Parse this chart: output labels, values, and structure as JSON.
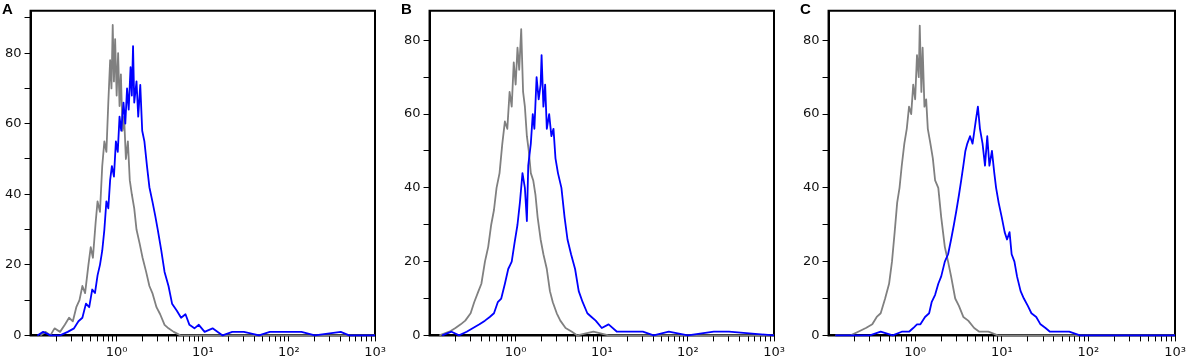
{
  "chart_data": [
    {
      "type": "line",
      "title": "A",
      "log": "x",
      "grid": false,
      "marker": "none",
      "xlim": [
        0.1,
        1000
      ],
      "ylim": [
        0,
        92
      ],
      "xticks": [
        {
          "value": 0.2,
          "label": null
        },
        {
          "value": 0.3,
          "label": null
        },
        {
          "value": 0.4,
          "label": null
        },
        {
          "value": 0.5,
          "label": null
        },
        {
          "value": 0.6,
          "label": null
        },
        {
          "value": 0.7,
          "label": null
        },
        {
          "value": 0.8,
          "label": null
        },
        {
          "value": 0.9,
          "label": null
        },
        {
          "value": 1,
          "label": "10⁰"
        },
        {
          "value": 2,
          "label": null
        },
        {
          "value": 3,
          "label": null
        },
        {
          "value": 4,
          "label": null
        },
        {
          "value": 5,
          "label": null
        },
        {
          "value": 6,
          "label": null
        },
        {
          "value": 7,
          "label": null
        },
        {
          "value": 8,
          "label": null
        },
        {
          "value": 9,
          "label": null
        },
        {
          "value": 10,
          "label": "10¹"
        },
        {
          "value": 20,
          "label": null
        },
        {
          "value": 30,
          "label": null
        },
        {
          "value": 40,
          "label": null
        },
        {
          "value": 50,
          "label": null
        },
        {
          "value": 60,
          "label": null
        },
        {
          "value": 70,
          "label": null
        },
        {
          "value": 80,
          "label": null
        },
        {
          "value": 90,
          "label": null
        },
        {
          "value": 100,
          "label": "10²"
        },
        {
          "value": 200,
          "label": null
        },
        {
          "value": 300,
          "label": null
        },
        {
          "value": 400,
          "label": null
        },
        {
          "value": 500,
          "label": null
        },
        {
          "value": 600,
          "label": null
        },
        {
          "value": 700,
          "label": null
        },
        {
          "value": 800,
          "label": null
        },
        {
          "value": 900,
          "label": null
        },
        {
          "value": 1000,
          "label": "10³"
        }
      ],
      "yticks": [
        0,
        {
          "value": 10,
          "label": null
        },
        20,
        {
          "value": 30,
          "label": null
        },
        40,
        {
          "value": 50,
          "label": null
        },
        60,
        {
          "value": 70,
          "label": null
        },
        80,
        {
          "value": 90,
          "label": null
        }
      ],
      "series": [
        {
          "color": "#808080",
          "x": [
            0.13,
            0.15,
            0.17,
            0.19,
            0.22,
            0.25,
            0.28,
            0.31,
            0.34,
            0.37,
            0.4,
            0.43,
            0.47,
            0.5,
            0.53,
            0.57,
            0.6,
            0.64,
            0.68,
            0.72,
            0.76,
            0.8,
            0.84,
            0.87,
            0.9,
            0.93,
            0.96,
            1.0,
            1.04,
            1.08,
            1.12,
            1.17,
            1.22,
            1.28,
            1.35,
            1.42,
            1.5,
            1.6,
            1.7,
            1.85,
            2.0,
            2.2,
            2.4,
            2.6,
            2.9,
            3.2,
            3.6,
            4.0,
            4.6,
            5.5,
            8,
            20,
            1000
          ],
          "values": [
            0,
            1,
            0,
            2,
            1,
            3,
            5,
            4,
            8,
            10,
            14,
            12,
            20,
            25,
            22,
            32,
            38,
            35,
            48,
            55,
            52,
            66,
            78,
            70,
            88,
            72,
            84,
            68,
            80,
            65,
            74,
            58,
            62,
            50,
            55,
            44,
            40,
            36,
            30,
            26,
            22,
            18,
            14,
            12,
            8,
            6,
            3,
            2,
            1,
            0,
            0,
            0,
            0
          ]
        },
        {
          "color": "#0000ff",
          "x": [
            0.12,
            0.14,
            0.17,
            0.22,
            0.27,
            0.32,
            0.36,
            0.4,
            0.44,
            0.48,
            0.52,
            0.56,
            0.6,
            0.64,
            0.68,
            0.72,
            0.76,
            0.8,
            0.84,
            0.88,
            0.93,
            0.98,
            1.03,
            1.08,
            1.13,
            1.2,
            1.26,
            1.32,
            1.38,
            1.45,
            1.5,
            1.55,
            1.6,
            1.7,
            1.78,
            1.88,
            1.98,
            2.1,
            2.25,
            2.4,
            2.6,
            2.8,
            3.0,
            3.3,
            3.6,
            4.0,
            4.4,
            5.0,
            5.6,
            6.3,
            7.0,
            8.0,
            9,
            10.5,
            13,
            17,
            22,
            30,
            45,
            60,
            105,
            140,
            200,
            400,
            500,
            1000
          ],
          "values": [
            0,
            1,
            0,
            0,
            1,
            2,
            4,
            5,
            9,
            8,
            13,
            12,
            17,
            20,
            24,
            30,
            38,
            36,
            44,
            48,
            45,
            55,
            52,
            62,
            58,
            66,
            60,
            70,
            64,
            76,
            68,
            82,
            66,
            72,
            62,
            71,
            58,
            55,
            48,
            42,
            38,
            34,
            30,
            24,
            18,
            14,
            9,
            7,
            5,
            6,
            3,
            2,
            3,
            1,
            2,
            0,
            1,
            1,
            0,
            1,
            1,
            1,
            0,
            1,
            0,
            0
          ]
        }
      ]
    },
    {
      "type": "line",
      "title": "B",
      "log": "x",
      "grid": false,
      "marker": "none",
      "xlim": [
        0.1,
        1000
      ],
      "ylim": [
        0,
        88
      ],
      "xticks": [
        {
          "value": 0.2,
          "label": null
        },
        {
          "value": 0.3,
          "label": null
        },
        {
          "value": 0.4,
          "label": null
        },
        {
          "value": 0.5,
          "label": null
        },
        {
          "value": 0.6,
          "label": null
        },
        {
          "value": 0.7,
          "label": null
        },
        {
          "value": 0.8,
          "label": null
        },
        {
          "value": 0.9,
          "label": null
        },
        {
          "value": 1,
          "label": "10⁰"
        },
        {
          "value": 2,
          "label": null
        },
        {
          "value": 3,
          "label": null
        },
        {
          "value": 4,
          "label": null
        },
        {
          "value": 5,
          "label": null
        },
        {
          "value": 6,
          "label": null
        },
        {
          "value": 7,
          "label": null
        },
        {
          "value": 8,
          "label": null
        },
        {
          "value": 9,
          "label": null
        },
        {
          "value": 10,
          "label": "10¹"
        },
        {
          "value": 20,
          "label": null
        },
        {
          "value": 30,
          "label": null
        },
        {
          "value": 40,
          "label": null
        },
        {
          "value": 50,
          "label": null
        },
        {
          "value": 60,
          "label": null
        },
        {
          "value": 70,
          "label": null
        },
        {
          "value": 80,
          "label": null
        },
        {
          "value": 90,
          "label": null
        },
        {
          "value": 100,
          "label": "10²"
        },
        {
          "value": 200,
          "label": null
        },
        {
          "value": 300,
          "label": null
        },
        {
          "value": 400,
          "label": null
        },
        {
          "value": 500,
          "label": null
        },
        {
          "value": 600,
          "label": null
        },
        {
          "value": 700,
          "label": null
        },
        {
          "value": 800,
          "label": null
        },
        {
          "value": 900,
          "label": null
        },
        {
          "value": 1000,
          "label": "10³"
        }
      ],
      "yticks": [
        0,
        {
          "value": 10,
          "label": null
        },
        20,
        {
          "value": 30,
          "label": null
        },
        40,
        {
          "value": 50,
          "label": null
        },
        60,
        {
          "value": 70,
          "label": null
        },
        80
      ],
      "series": [
        {
          "color": "#808080",
          "x": [
            0.13,
            0.17,
            0.2,
            0.23,
            0.26,
            0.3,
            0.33,
            0.37,
            0.4,
            0.44,
            0.48,
            0.52,
            0.56,
            0.6,
            0.65,
            0.7,
            0.75,
            0.8,
            0.85,
            0.9,
            0.95,
            1.0,
            1.05,
            1.1,
            1.16,
            1.22,
            1.28,
            1.35,
            1.42,
            1.5,
            1.6,
            1.7,
            1.8,
            1.95,
            2.1,
            2.3,
            2.5,
            2.7,
            3.0,
            3.3,
            3.8,
            4.5,
            5.2,
            8,
            12,
            1000
          ],
          "values": [
            0,
            1,
            2,
            3,
            4,
            6,
            9,
            12,
            14,
            20,
            24,
            30,
            34,
            40,
            44,
            52,
            58,
            56,
            66,
            62,
            74,
            68,
            78,
            72,
            83,
            66,
            62,
            54,
            50,
            44,
            42,
            38,
            32,
            26,
            22,
            18,
            12,
            9,
            6,
            4,
            2,
            1,
            0,
            1,
            0,
            0
          ]
        },
        {
          "color": "#0000ff",
          "x": [
            0.14,
            0.18,
            0.22,
            0.27,
            0.32,
            0.38,
            0.44,
            0.5,
            0.56,
            0.62,
            0.68,
            0.75,
            0.82,
            0.9,
            0.97,
            1.05,
            1.12,
            1.2,
            1.28,
            1.35,
            1.4,
            1.5,
            1.58,
            1.65,
            1.75,
            1.85,
            1.95,
            2.0,
            2.1,
            2.2,
            2.3,
            2.45,
            2.6,
            2.75,
            2.9,
            3.1,
            3.4,
            3.7,
            4.0,
            4.4,
            4.9,
            5.4,
            6.0,
            6.8,
            7.6,
            8.5,
            10,
            12,
            15,
            20,
            30,
            40,
            60,
            100,
            200,
            300,
            1000
          ],
          "values": [
            0,
            1,
            0,
            1,
            2,
            3,
            4,
            5,
            6,
            9,
            10,
            14,
            18,
            20,
            25,
            30,
            36,
            44,
            40,
            31,
            46,
            52,
            60,
            56,
            70,
            64,
            68,
            76,
            62,
            68,
            56,
            60,
            54,
            56,
            48,
            44,
            40,
            32,
            26,
            22,
            18,
            12,
            9,
            6,
            5,
            4,
            2,
            3,
            1,
            1,
            1,
            0,
            1,
            0,
            1,
            1,
            0
          ]
        }
      ]
    },
    {
      "type": "line",
      "title": "C",
      "log": "x",
      "grid": false,
      "marker": "none",
      "xlim": [
        0.1,
        1000
      ],
      "ylim": [
        0,
        88
      ],
      "xticks": [
        {
          "value": 0.2,
          "label": null
        },
        {
          "value": 0.3,
          "label": null
        },
        {
          "value": 0.4,
          "label": null
        },
        {
          "value": 0.5,
          "label": null
        },
        {
          "value": 0.6,
          "label": null
        },
        {
          "value": 0.7,
          "label": null
        },
        {
          "value": 0.8,
          "label": null
        },
        {
          "value": 0.9,
          "label": null
        },
        {
          "value": 1,
          "label": "10⁰"
        },
        {
          "value": 2,
          "label": null
        },
        {
          "value": 3,
          "label": null
        },
        {
          "value": 4,
          "label": null
        },
        {
          "value": 5,
          "label": null
        },
        {
          "value": 6,
          "label": null
        },
        {
          "value": 7,
          "label": null
        },
        {
          "value": 8,
          "label": null
        },
        {
          "value": 9,
          "label": null
        },
        {
          "value": 10,
          "label": "10¹"
        },
        {
          "value": 20,
          "label": null
        },
        {
          "value": 30,
          "label": null
        },
        {
          "value": 40,
          "label": null
        },
        {
          "value": 50,
          "label": null
        },
        {
          "value": 60,
          "label": null
        },
        {
          "value": 70,
          "label": null
        },
        {
          "value": 80,
          "label": null
        },
        {
          "value": 90,
          "label": null
        },
        {
          "value": 100,
          "label": "10²"
        },
        {
          "value": 200,
          "label": null
        },
        {
          "value": 300,
          "label": null
        },
        {
          "value": 400,
          "label": null
        },
        {
          "value": 500,
          "label": null
        },
        {
          "value": 600,
          "label": null
        },
        {
          "value": 700,
          "label": null
        },
        {
          "value": 800,
          "label": null
        },
        {
          "value": 900,
          "label": null
        },
        {
          "value": 1000,
          "label": "10³"
        }
      ],
      "yticks": [
        0,
        {
          "value": 10,
          "label": null
        },
        20,
        {
          "value": 30,
          "label": null
        },
        40,
        {
          "value": 50,
          "label": null
        },
        60,
        {
          "value": 70,
          "label": null
        },
        80
      ],
      "series": [
        {
          "color": "#808080",
          "x": [
            0.12,
            0.18,
            0.22,
            0.27,
            0.32,
            0.36,
            0.4,
            0.45,
            0.5,
            0.54,
            0.58,
            0.62,
            0.66,
            0.7,
            0.75,
            0.8,
            0.85,
            0.9,
            0.95,
            1.0,
            1.05,
            1.1,
            1.13,
            1.18,
            1.22,
            1.28,
            1.34,
            1.4,
            1.5,
            1.6,
            1.7,
            1.85,
            2.0,
            2.2,
            2.4,
            2.6,
            2.9,
            3.2,
            3.6,
            4.1,
            4.8,
            5.5,
            7,
            9,
            15,
            1000
          ],
          "values": [
            0,
            0,
            1,
            2,
            3,
            5,
            6,
            10,
            14,
            20,
            28,
            36,
            40,
            46,
            52,
            56,
            62,
            60,
            68,
            64,
            76,
            70,
            84,
            66,
            78,
            62,
            64,
            56,
            52,
            48,
            42,
            40,
            32,
            24,
            20,
            16,
            10,
            8,
            5,
            4,
            2,
            1,
            1,
            0,
            0,
            0
          ]
        },
        {
          "color": "#0000ff",
          "x": [
            0.12,
            0.3,
            0.4,
            0.55,
            0.7,
            0.85,
            0.95,
            1.05,
            1.15,
            1.3,
            1.45,
            1.55,
            1.7,
            1.85,
            2.0,
            2.2,
            2.4,
            2.6,
            2.8,
            3.0,
            3.2,
            3.4,
            3.6,
            3.8,
            4.0,
            4.3,
            4.6,
            5.0,
            5.3,
            5.6,
            6.0,
            6.4,
            6.8,
            7.2,
            7.7,
            8.2,
            8.6,
            9.2,
            10,
            10.8,
            11.5,
            12.3,
            13,
            14,
            15,
            16.5,
            18,
            20,
            22,
            25,
            28,
            32,
            36,
            45,
            60,
            80,
            100,
            150,
            200,
            1000
          ],
          "values": [
            0,
            0,
            1,
            0,
            1,
            1,
            2,
            3,
            3,
            5,
            6,
            9,
            11,
            14,
            16,
            20,
            22,
            26,
            30,
            34,
            38,
            42,
            46,
            50,
            52,
            54,
            52,
            58,
            62,
            56,
            52,
            46,
            54,
            46,
            50,
            44,
            40,
            36,
            32,
            28,
            26,
            28,
            22,
            20,
            16,
            12,
            10,
            8,
            6,
            5,
            3,
            2,
            1,
            1,
            1,
            0,
            0,
            0,
            0,
            0
          ]
        }
      ]
    }
  ]
}
